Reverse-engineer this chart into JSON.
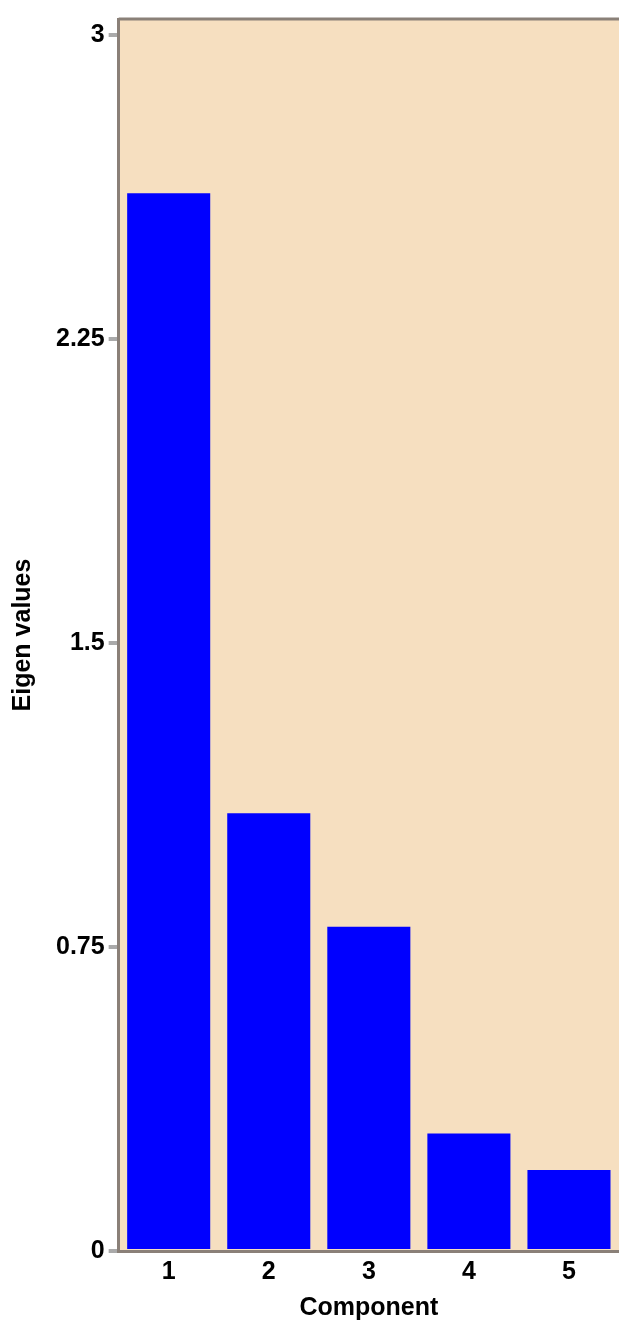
{
  "chart_data": {
    "type": "bar",
    "xlabel": "Component",
    "ylabel": "Eigen values",
    "categories": [
      "1",
      "2",
      "3",
      "4",
      "5"
    ],
    "values": [
      2.61,
      1.08,
      0.8,
      0.29,
      0.2
    ],
    "color": "#0000ff",
    "ylim": [
      0,
      3.04
    ],
    "yticks": [
      0,
      0.75,
      1.5,
      2.25,
      3
    ],
    "grid": false,
    "legend": false
  }
}
